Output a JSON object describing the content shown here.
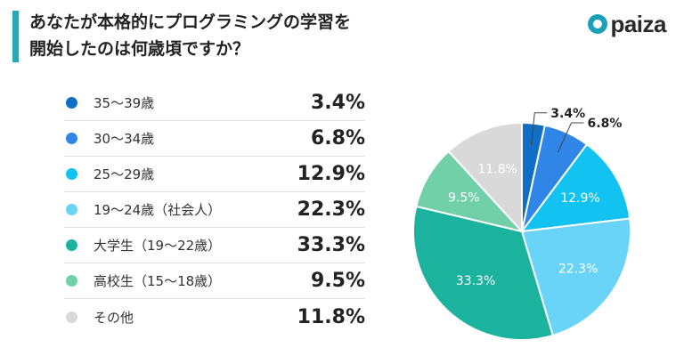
{
  "header": {
    "title_line1": "あなたが本格的にプログラミングの学習を",
    "title_line2": "開始したのは何歳頃ですか？",
    "logo_text": "paiza"
  },
  "chart_data": {
    "type": "pie",
    "title": "あなたが本格的にプログラミングの学習を開始したのは何歳頃ですか？",
    "unit": "%",
    "start": "top (12 o'clock), clockwise",
    "slices": [
      {
        "label": "35〜39歳",
        "value": 3.4,
        "display": "3.4%",
        "color": "#0f6fc6"
      },
      {
        "label": "30〜34歳",
        "value": 6.8,
        "display": "6.8%",
        "color": "#2f86e6"
      },
      {
        "label": "25〜29歳",
        "value": 12.9,
        "display": "12.9%",
        "color": "#12c2f0"
      },
      {
        "label": "19〜24歳（社会人）",
        "value": 22.3,
        "display": "22.3%",
        "color": "#6ad4f8"
      },
      {
        "label": "大学生（19〜22歳）",
        "value": 33.3,
        "display": "33.3%",
        "color": "#1bb39e"
      },
      {
        "label": "高校生（15〜18歳）",
        "value": 9.5,
        "display": "9.5%",
        "color": "#72d0a8"
      },
      {
        "label": "その他",
        "value": 11.8,
        "display": "11.8%",
        "color": "#d9d9d9"
      }
    ]
  }
}
